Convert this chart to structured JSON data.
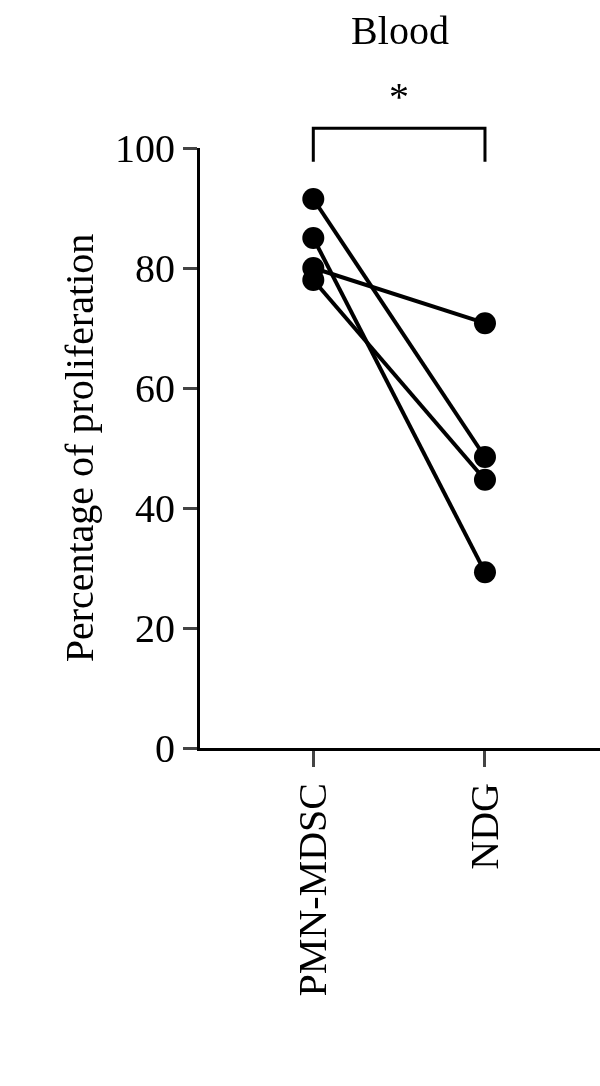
{
  "chart_data": {
    "type": "line",
    "title": "Blood",
    "ylabel": "Percentage of proliferation",
    "categories": [
      "PMN-MDSC",
      "NDG"
    ],
    "series": [
      {
        "color": "#000000",
        "values": [
          91.5,
          48.5
        ]
      },
      {
        "color": "#000000",
        "values": [
          85,
          29.3
        ]
      },
      {
        "color": "#000000",
        "values": [
          80,
          70.8
        ]
      },
      {
        "color": "#000000",
        "values": [
          78,
          44.7
        ]
      }
    ],
    "ylim": [
      0,
      100
    ],
    "yticks": [
      0,
      20,
      40,
      60,
      80,
      100
    ],
    "marker": "circle",
    "line_style": "solid",
    "annotations": [
      "*"
    ]
  }
}
